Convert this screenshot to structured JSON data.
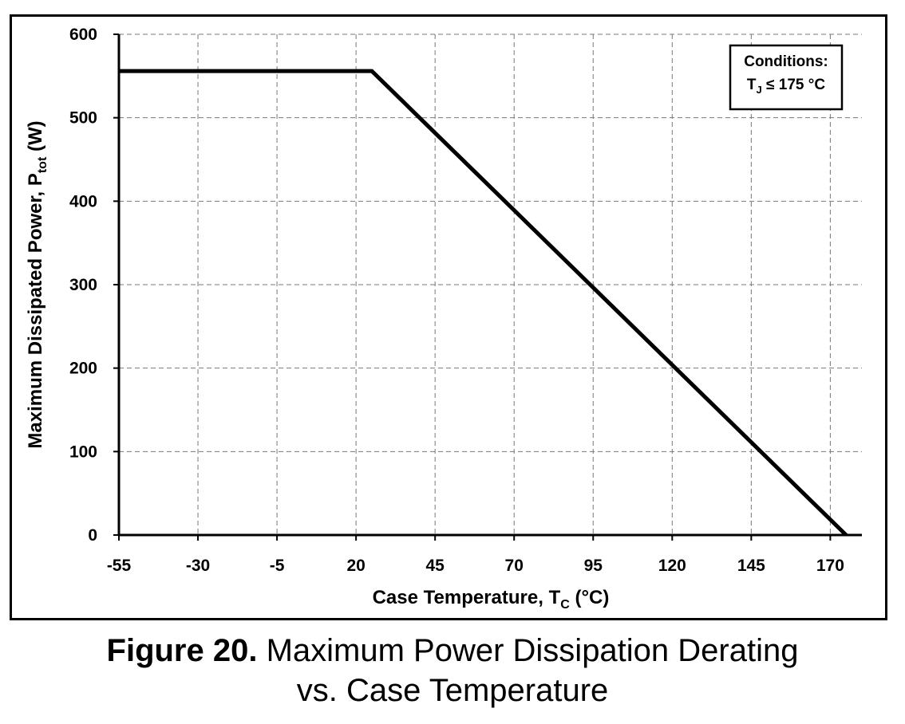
{
  "chart_data": {
    "type": "line",
    "xlabel": "Case Temperature, T",
    "xlabel_sub": "C",
    "xlabel_unit": " (°C)",
    "ylabel": "Maximum Dissipated Power, P",
    "ylabel_sub": "tot",
    "ylabel_unit": " (W)",
    "xlim": [
      -55,
      180
    ],
    "ylim": [
      0,
      600
    ],
    "xticks": [
      -55,
      -30,
      -5,
      20,
      45,
      70,
      95,
      120,
      145,
      170
    ],
    "yticks": [
      0,
      100,
      200,
      300,
      400,
      500,
      600
    ],
    "grid": true,
    "annotation": {
      "line1": "Conditions:",
      "line2_main": "T",
      "line2_sub": "J",
      "line2_rest": " ≤ 175 °C"
    },
    "series": [
      {
        "x": [
          -55,
          25,
          175
        ],
        "y": [
          556,
          556,
          0
        ]
      }
    ]
  },
  "caption": {
    "label": "Figure 20.",
    "line1": " Maximum Power Dissipation Derating",
    "line2": "vs. Case Temperature"
  }
}
